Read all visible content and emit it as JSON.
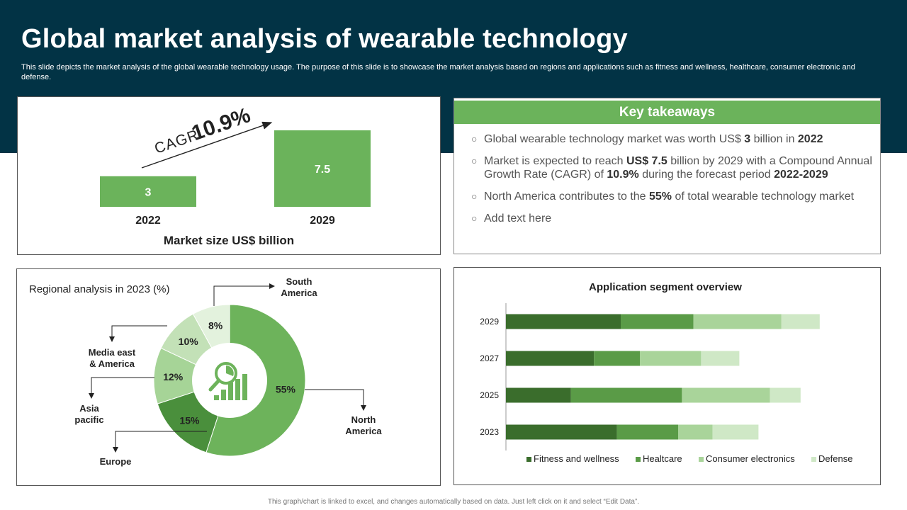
{
  "header": {
    "title": "Global market analysis of wearable technology",
    "subtitle": "This slide depicts the market analysis of the global wearable technology usage. The purpose of this slide is to showcase the market analysis based on regions and applications such as fitness and wellness, healthcare, consumer electronic and defense."
  },
  "market": {
    "cagr_prefix": "CAGR",
    "cagr_value": "10.9%",
    "caption": "Market size US$ billion"
  },
  "takeaways": {
    "heading": "Key takeaways",
    "items": [
      [
        {
          "t": "Global wearable technology  market was worth US$ "
        },
        {
          "t": "3",
          "b": true
        },
        {
          "t": " billion in "
        },
        {
          "t": "2022",
          "b": true
        }
      ],
      [
        {
          "t": "Market is expected to reach "
        },
        {
          "t": "US$ 7.5",
          "b": true
        },
        {
          "t": " billion by 2029 with a Compound Annual Growth Rate (CAGR) of "
        },
        {
          "t": "10.9%",
          "b": true
        },
        {
          "t": " during the forecast period "
        },
        {
          "t": "2022-2029",
          "b": true
        }
      ],
      [
        {
          "t": "North America contributes to the "
        },
        {
          "t": "55%",
          "b": true
        },
        {
          "t": " of total wearable technology market"
        }
      ],
      [
        {
          "t": "Add text here"
        }
      ]
    ]
  },
  "footer": "This graph/chart is linked to excel, and changes automatically based on data. Just left click on it and select “Edit Data”.",
  "colors": {
    "header_bg": "#023345",
    "accent_green": "#6bb35b",
    "series": [
      "#3a6d2c",
      "#5a9b47",
      "#a9d49a",
      "#cfe8c6"
    ]
  },
  "chart_data": [
    {
      "type": "bar",
      "categories": [
        "2022",
        "2029"
      ],
      "values": [
        3,
        7.5
      ],
      "title": "",
      "xlabel": "Market size US$ billion",
      "ylabel": "",
      "annotation": "CAGR 10.9%"
    },
    {
      "type": "pie",
      "title": "Regional analysis  in 2023 (%)",
      "labels": [
        "North America",
        "Europe",
        "Asia pacific",
        "Media east & America",
        "South America"
      ],
      "display_labels": [
        "North\nAmerica",
        "Europe",
        "Asia\npacific",
        "Media east\n& America",
        "South\nAmerica"
      ],
      "values": [
        55,
        15,
        12,
        10,
        8
      ],
      "colors": [
        "#6db35b",
        "#4a8f3c",
        "#a6d497",
        "#c3e1b7",
        "#e3f2dd"
      ],
      "style": "donut"
    },
    {
      "type": "bar",
      "orientation": "horizontal",
      "stacked": true,
      "title": "Application segment overview",
      "categories": [
        "2029",
        "2027",
        "2025",
        "2023"
      ],
      "series": [
        {
          "name": "Fitness and wellness",
          "values": [
            30,
            23,
            17,
            29
          ]
        },
        {
          "name": "Healtcare",
          "values": [
            19,
            12,
            29,
            16
          ]
        },
        {
          "name": "Consumer electronics",
          "values": [
            23,
            16,
            23,
            9
          ]
        },
        {
          "name": "Defense",
          "values": [
            10,
            10,
            8,
            12
          ]
        }
      ],
      "xlim": [
        0,
        100
      ],
      "legend": "bottom"
    }
  ]
}
